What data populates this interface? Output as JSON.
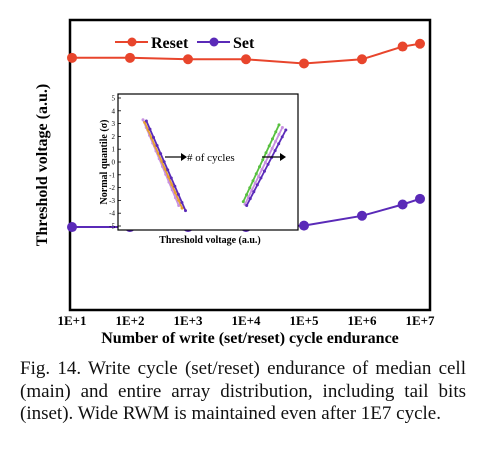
{
  "chart_data": {
    "type": "line",
    "xlabel": "Number of write (set/reset) cycle endurance",
    "ylabel": "Threshold voltage (a.u.)",
    "x": [
      "1E+1",
      "1E+2",
      "1E+3",
      "1E+4",
      "1E+5",
      "1E+6",
      "1E+7"
    ],
    "x_log_values": [
      1,
      2,
      3,
      4,
      5,
      6,
      6.7,
      7
    ],
    "series": [
      {
        "name": "Reset",
        "color": "#e8452c",
        "marker": "circle",
        "x": [
          1,
          2,
          3,
          4,
          5,
          6,
          6.7,
          7
        ],
        "values": [
          0.88,
          0.88,
          0.875,
          0.875,
          0.86,
          0.875,
          0.92,
          0.93
        ]
      },
      {
        "name": "Set",
        "color": "#5a2ab8",
        "marker": "circle",
        "x": [
          1,
          2,
          3,
          4,
          5,
          6,
          6.7,
          7
        ],
        "values": [
          0.28,
          0.28,
          0.28,
          0.28,
          0.285,
          0.32,
          0.36,
          0.38
        ]
      }
    ],
    "ylim": [
      0,
      1
    ],
    "legend": {
      "position": "top-center"
    },
    "inset": {
      "type": "line",
      "xlabel": "Threshold voltage (a.u.)",
      "ylabel": "Normal quantile (σ)",
      "yticks": [
        "5",
        "4",
        "3",
        "2",
        "1",
        "0",
        "-1",
        "-2",
        "-3",
        "-4",
        "-5"
      ],
      "ylim": [
        -5,
        5
      ],
      "annotation": "# of cycles",
      "reset_cluster": [
        {
          "color": "#c890e0",
          "x": [
            1.0,
            3.1
          ],
          "y": [
            3.3,
            -3.4
          ]
        },
        {
          "color": "#e8a030",
          "x": [
            1.1,
            3.3
          ],
          "y": [
            3.1,
            -3.6
          ]
        },
        {
          "color": "#5a2ab8",
          "x": [
            1.2,
            3.5
          ],
          "y": [
            3.2,
            -3.8
          ]
        }
      ],
      "set_cluster": [
        {
          "color": "#58c040",
          "x": [
            6.9,
            9.0
          ],
          "y": [
            -3.1,
            2.9
          ]
        },
        {
          "color": "#c890e0",
          "x": [
            7.0,
            9.2
          ],
          "y": [
            -3.3,
            2.7
          ]
        },
        {
          "color": "#5a2ab8",
          "x": [
            7.1,
            9.4
          ],
          "y": [
            -3.4,
            2.5
          ]
        }
      ]
    }
  },
  "caption": "Fig. 14. Write cycle (set/reset) endurance of median cell (main) and entire array distribution, including tail bits (inset). Wide RWM is maintained even after 1E7 cycle."
}
